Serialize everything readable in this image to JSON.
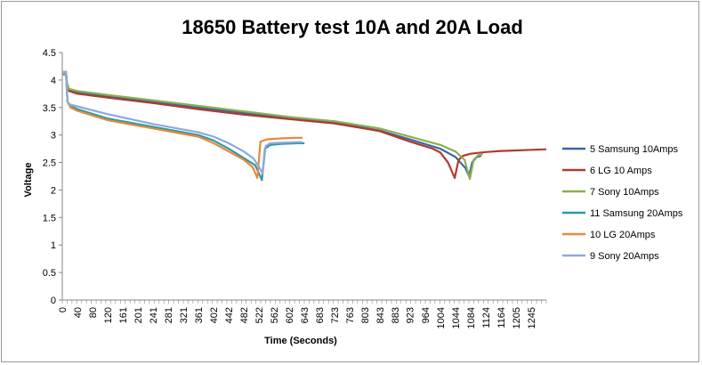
{
  "chart_data": {
    "type": "line",
    "title": "18650 Battery test 10A and 20A Load",
    "xlabel": "Time (Seconds)",
    "ylabel": "Voltage",
    "ylim": [
      0,
      4.5
    ],
    "yticks": [
      "0",
      "0.5",
      "1",
      "1.5",
      "2",
      "2.5",
      "3",
      "3.5",
      "4",
      "4.5"
    ],
    "xlim": [
      0,
      1285
    ],
    "xticks": [
      "0",
      "40",
      "80",
      "120",
      "161",
      "201",
      "241",
      "281",
      "321",
      "361",
      "402",
      "442",
      "482",
      "522",
      "562",
      "602",
      "643",
      "683",
      "723",
      "763",
      "803",
      "843",
      "883",
      "923",
      "964",
      "1004",
      "1044",
      "1084",
      "1124",
      "1164",
      "1205",
      "1245"
    ],
    "legend_position": "right",
    "grid": false,
    "series": [
      {
        "name": "5 Samsung 10Amps",
        "color": "#3A67A8",
        "points": [
          [
            0,
            4.15
          ],
          [
            10,
            4.15
          ],
          [
            12,
            3.95
          ],
          [
            18,
            3.82
          ],
          [
            40,
            3.78
          ],
          [
            120,
            3.7
          ],
          [
            241,
            3.6
          ],
          [
            361,
            3.5
          ],
          [
            482,
            3.4
          ],
          [
            602,
            3.3
          ],
          [
            723,
            3.23
          ],
          [
            843,
            3.08
          ],
          [
            923,
            2.92
          ],
          [
            1004,
            2.75
          ],
          [
            1044,
            2.6
          ],
          [
            1070,
            2.4
          ],
          [
            1080,
            2.25
          ],
          [
            1088,
            2.5
          ],
          [
            1100,
            2.6
          ],
          [
            1112,
            2.62
          ]
        ]
      },
      {
        "name": "6 LG 10 Amps",
        "color": "#B03A32",
        "points": [
          [
            0,
            4.15
          ],
          [
            10,
            4.15
          ],
          [
            12,
            3.95
          ],
          [
            18,
            3.8
          ],
          [
            40,
            3.75
          ],
          [
            120,
            3.68
          ],
          [
            241,
            3.58
          ],
          [
            361,
            3.47
          ],
          [
            482,
            3.37
          ],
          [
            602,
            3.29
          ],
          [
            723,
            3.21
          ],
          [
            843,
            3.07
          ],
          [
            923,
            2.88
          ],
          [
            984,
            2.75
          ],
          [
            1004,
            2.68
          ],
          [
            1024,
            2.5
          ],
          [
            1042,
            2.22
          ],
          [
            1052,
            2.55
          ],
          [
            1064,
            2.62
          ],
          [
            1084,
            2.66
          ],
          [
            1124,
            2.69
          ],
          [
            1164,
            2.71
          ],
          [
            1205,
            2.72
          ],
          [
            1245,
            2.73
          ],
          [
            1285,
            2.74
          ]
        ]
      },
      {
        "name": "7 Sony 10Amps",
        "color": "#89B04A",
        "points": [
          [
            0,
            4.15
          ],
          [
            10,
            4.15
          ],
          [
            12,
            3.95
          ],
          [
            18,
            3.84
          ],
          [
            40,
            3.8
          ],
          [
            120,
            3.73
          ],
          [
            241,
            3.63
          ],
          [
            361,
            3.53
          ],
          [
            482,
            3.43
          ],
          [
            602,
            3.33
          ],
          [
            723,
            3.25
          ],
          [
            843,
            3.12
          ],
          [
            923,
            2.97
          ],
          [
            1004,
            2.82
          ],
          [
            1044,
            2.7
          ],
          [
            1068,
            2.55
          ],
          [
            1082,
            2.2
          ],
          [
            1092,
            2.55
          ],
          [
            1104,
            2.63
          ],
          [
            1116,
            2.65
          ]
        ]
      },
      {
        "name": "11 Samsung 20Amps",
        "color": "#2E9AA6",
        "points": [
          [
            0,
            4.1
          ],
          [
            10,
            4.1
          ],
          [
            14,
            3.6
          ],
          [
            22,
            3.53
          ],
          [
            40,
            3.47
          ],
          [
            120,
            3.3
          ],
          [
            241,
            3.15
          ],
          [
            361,
            3.0
          ],
          [
            402,
            2.9
          ],
          [
            442,
            2.75
          ],
          [
            482,
            2.58
          ],
          [
            512,
            2.45
          ],
          [
            530,
            2.18
          ],
          [
            538,
            2.75
          ],
          [
            552,
            2.82
          ],
          [
            582,
            2.84
          ],
          [
            622,
            2.85
          ],
          [
            643,
            2.85
          ]
        ]
      },
      {
        "name": "10 LG 20Amps",
        "color": "#E8893A",
        "points": [
          [
            0,
            4.12
          ],
          [
            10,
            4.12
          ],
          [
            14,
            3.6
          ],
          [
            22,
            3.5
          ],
          [
            40,
            3.44
          ],
          [
            120,
            3.27
          ],
          [
            241,
            3.12
          ],
          [
            361,
            2.97
          ],
          [
            402,
            2.85
          ],
          [
            442,
            2.7
          ],
          [
            482,
            2.55
          ],
          [
            505,
            2.42
          ],
          [
            518,
            2.22
          ],
          [
            526,
            2.88
          ],
          [
            542,
            2.92
          ],
          [
            582,
            2.94
          ],
          [
            622,
            2.95
          ],
          [
            638,
            2.95
          ]
        ]
      },
      {
        "name": "9 Sony 20Amps",
        "color": "#8EA9DB",
        "points": [
          [
            0,
            4.15
          ],
          [
            10,
            4.15
          ],
          [
            14,
            3.6
          ],
          [
            22,
            3.55
          ],
          [
            40,
            3.52
          ],
          [
            120,
            3.38
          ],
          [
            241,
            3.2
          ],
          [
            361,
            3.05
          ],
          [
            402,
            2.97
          ],
          [
            442,
            2.85
          ],
          [
            482,
            2.7
          ],
          [
            508,
            2.57
          ],
          [
            522,
            2.42
          ],
          [
            532,
            2.3
          ],
          [
            540,
            2.8
          ],
          [
            552,
            2.85
          ],
          [
            582,
            2.86
          ],
          [
            622,
            2.87
          ],
          [
            638,
            2.87
          ]
        ]
      }
    ]
  }
}
